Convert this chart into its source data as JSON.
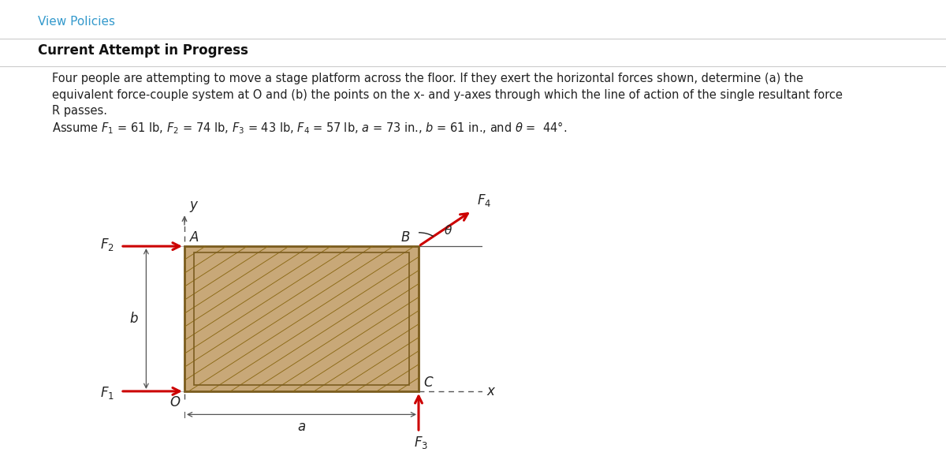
{
  "bg_color": "#ffffff",
  "header_color": "#3399cc",
  "header_text": "View Policies",
  "subheader_text": "Current Attempt in Progress",
  "body_line1": "Four people are attempting to move a stage platform across the floor. If they exert the horizontal forces shown, determine (a) the",
  "body_line2": "equivalent force-couple system at O and (b) the points on the x- and y-axes through which the line of action of the single resultant force",
  "body_line3": "R passes.",
  "assume_line": "Assume $F_1$ = 61 lb, $F_2$ = 74 lb, $F_3$ = 43 lb, $F_4$ = 57 lb, $a$ = 73 in., $b$ = 61 in., and $\\theta$ =  44°.",
  "box_fill": "#c8a878",
  "box_edge": "#7a5c1e",
  "hatch_color": "#8B6914",
  "arrow_color": "#cc0000",
  "axis_color": "#555555",
  "dim_color": "#555555",
  "label_color": "#222222",
  "theta_deg": 44
}
